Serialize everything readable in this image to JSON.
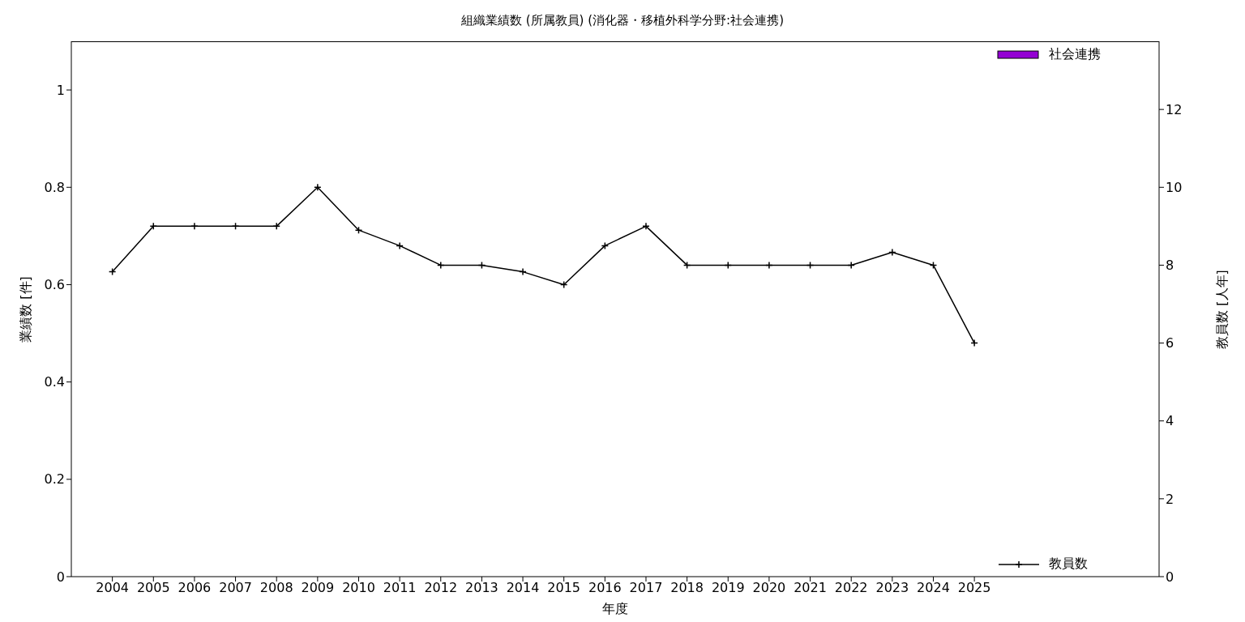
{
  "chart_data": {
    "type": "line",
    "title": "組織業績数 (所属教員) (消化器・移植外科学分野:社会連携)",
    "xlabel": "年度",
    "ylabel": "業績数 [件]",
    "y2label": "教員数 [人年]",
    "x": [
      2004,
      2005,
      2006,
      2007,
      2008,
      2009,
      2010,
      2011,
      2012,
      2013,
      2014,
      2015,
      2016,
      2017,
      2018,
      2019,
      2020,
      2021,
      2022,
      2023,
      2024,
      2025
    ],
    "xlim": [
      2003,
      2029.5
    ],
    "xticks": [
      2004,
      2005,
      2006,
      2007,
      2008,
      2009,
      2010,
      2011,
      2012,
      2013,
      2014,
      2015,
      2016,
      2017,
      2018,
      2019,
      2020,
      2021,
      2022,
      2023,
      2024,
      2025
    ],
    "ylim": [
      0,
      1.1
    ],
    "yticks": [
      0,
      0.2,
      0.4,
      0.6,
      0.8,
      1
    ],
    "y2lim": [
      0,
      13.75
    ],
    "y2ticks": [
      0,
      2,
      4,
      6,
      8,
      10,
      12
    ],
    "series": [
      {
        "name": "社会連携",
        "type": "bar",
        "color": "#9400d3",
        "values": [
          0,
          0,
          0,
          0,
          0,
          0,
          0,
          0,
          0,
          0,
          0,
          0,
          0,
          0,
          0,
          0,
          0,
          0,
          0,
          0,
          0,
          0
        ]
      },
      {
        "name": "教員数",
        "axis": "y2",
        "color": "#000000",
        "values": [
          7.83,
          9,
          9,
          9,
          9,
          10,
          8.9,
          8.5,
          8,
          8,
          7.83,
          7.5,
          8.5,
          9,
          8,
          8,
          8,
          8,
          8,
          8.33,
          8,
          6
        ]
      }
    ],
    "marker": "cross",
    "line_style": "solid",
    "grid": false,
    "legend": "right"
  }
}
